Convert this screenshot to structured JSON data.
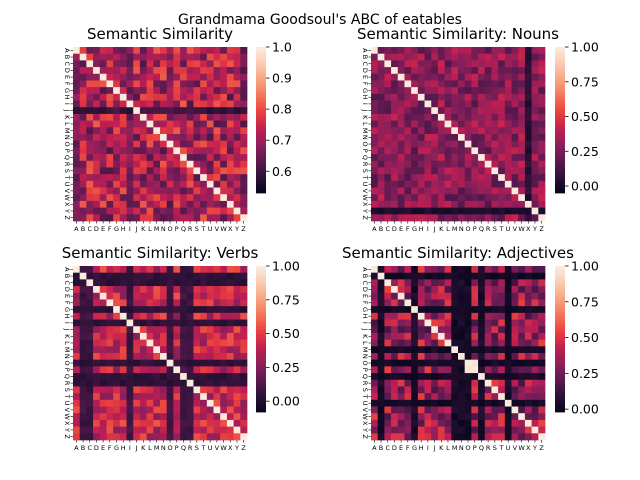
{
  "figure": {
    "title": "Grandmama Goodsoul's ABC of eatables"
  },
  "chart_data": [
    {
      "type": "heatmap",
      "title": "Semantic Similarity",
      "labels": [
        "A",
        "B",
        "C",
        "D",
        "E",
        "F",
        "G",
        "H",
        "I",
        "J",
        "K",
        "L",
        "M",
        "N",
        "O",
        "P",
        "Q",
        "R",
        "S",
        "T",
        "U",
        "V",
        "W",
        "X",
        "Y",
        "Z"
      ],
      "colorbar_range": [
        0.53,
        1.0
      ],
      "colorbar_ticks": [
        "0.6",
        "0.7",
        "0.8",
        "0.9",
        "1.0"
      ],
      "colormap": "rocket",
      "value_model": {
        "base": 0.72,
        "noise": 0.1,
        "low_rows": [
          "J"
        ],
        "low_value": 0.57,
        "low_columns": [
          "A",
          "I"
        ],
        "col_value": 0.63,
        "diagonal": 1.0
      }
    },
    {
      "type": "heatmap",
      "title": "Semantic Similarity: Nouns",
      "labels": [
        "A",
        "B",
        "C",
        "D",
        "E",
        "F",
        "G",
        "H",
        "I",
        "J",
        "K",
        "L",
        "M",
        "N",
        "O",
        "P",
        "Q",
        "R",
        "S",
        "T",
        "U",
        "V",
        "W",
        "X",
        "Y",
        "Z"
      ],
      "colorbar_range": [
        -0.05,
        1.0
      ],
      "colorbar_ticks": [
        "0.00",
        "0.25",
        "0.50",
        "0.75",
        "1.00"
      ],
      "colormap": "rocket",
      "value_model": {
        "base": 0.3,
        "noise": 0.14,
        "low_rows": [
          "Y"
        ],
        "low_value": 0.0,
        "low_columns": [
          "X"
        ],
        "col_value": 0.02,
        "diagonal": 1.0
      }
    },
    {
      "type": "heatmap",
      "title": "Semantic Similarity: Verbs",
      "labels": [
        "A",
        "B",
        "C",
        "D",
        "E",
        "F",
        "G",
        "H",
        "I",
        "J",
        "K",
        "L",
        "M",
        "N",
        "O",
        "P",
        "Q",
        "R",
        "S",
        "T",
        "U",
        "V",
        "W",
        "X",
        "Y",
        "Z"
      ],
      "colorbar_range": [
        -0.08,
        1.0
      ],
      "colorbar_ticks": [
        "0.00",
        "0.25",
        "0.50",
        "0.75",
        "1.00"
      ],
      "colormap": "rocket",
      "value_model": {
        "base": 0.42,
        "noise": 0.15,
        "low_rows": [
          "B",
          "C",
          "G",
          "I",
          "O",
          "Q",
          "R"
        ],
        "low_value": 0.02,
        "low_columns": [
          "B",
          "C",
          "I",
          "O",
          "Q",
          "R"
        ],
        "col_value": 0.05,
        "diagonal": 1.0
      }
    },
    {
      "type": "heatmap",
      "title": "Semantic Similarity: Adjectives",
      "labels": [
        "A",
        "B",
        "C",
        "D",
        "E",
        "F",
        "G",
        "H",
        "I",
        "J",
        "K",
        "L",
        "M",
        "N",
        "O",
        "P",
        "Q",
        "R",
        "S",
        "T",
        "U",
        "V",
        "W",
        "X",
        "Y",
        "Z"
      ],
      "colorbar_range": [
        -0.02,
        1.0
      ],
      "colorbar_ticks": [
        "0.00",
        "0.25",
        "0.50",
        "0.75",
        "1.00"
      ],
      "colormap": "rocket",
      "value_model": {
        "base": 0.35,
        "noise": 0.2,
        "low_rows": [
          "B",
          "G",
          "M",
          "O",
          "Q",
          "U"
        ],
        "low_value": 0.0,
        "low_columns": [
          "B",
          "G",
          "M",
          "N",
          "O",
          "Q",
          "U"
        ],
        "col_value": 0.0,
        "high_block_rows": [
          "O",
          "P"
        ],
        "high_block_cols": [
          "O",
          "P"
        ],
        "high_value": 0.98,
        "diagonal": 1.0
      }
    }
  ]
}
